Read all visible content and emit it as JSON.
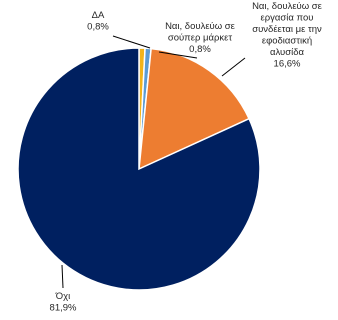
{
  "chart_data": {
    "type": "pie",
    "title": "",
    "legend": "none",
    "slices": [
      {
        "name": "ΔΑ",
        "value": 0.8,
        "label": "0,8%",
        "color": "#F2B31B"
      },
      {
        "name": "Ναι, δουλεύω σε σούπερ μάρκετ",
        "value": 0.8,
        "label": "0,8%",
        "color": "#5B9BD5"
      },
      {
        "name": "Ναι, δουλεύω σε εργασία που συνδέεται με την εφοδιαστική αλυσίδα",
        "value": 16.6,
        "label": "16,6%",
        "color": "#ED7D31"
      },
      {
        "name": "Όχι",
        "value": 81.9,
        "label": "81,9%",
        "color": "#002060"
      }
    ],
    "label_lines": [
      [
        "ΔΑ"
      ],
      [
        "Ναι, δουλεύω σε",
        "σούπερ μάρκετ"
      ],
      [
        "Ναι, δουλεύω σε",
        "εργασία που",
        "συνδέεται με την",
        "εφοδιαστική",
        "αλυσίδα"
      ],
      [
        "Όχι"
      ]
    ]
  }
}
